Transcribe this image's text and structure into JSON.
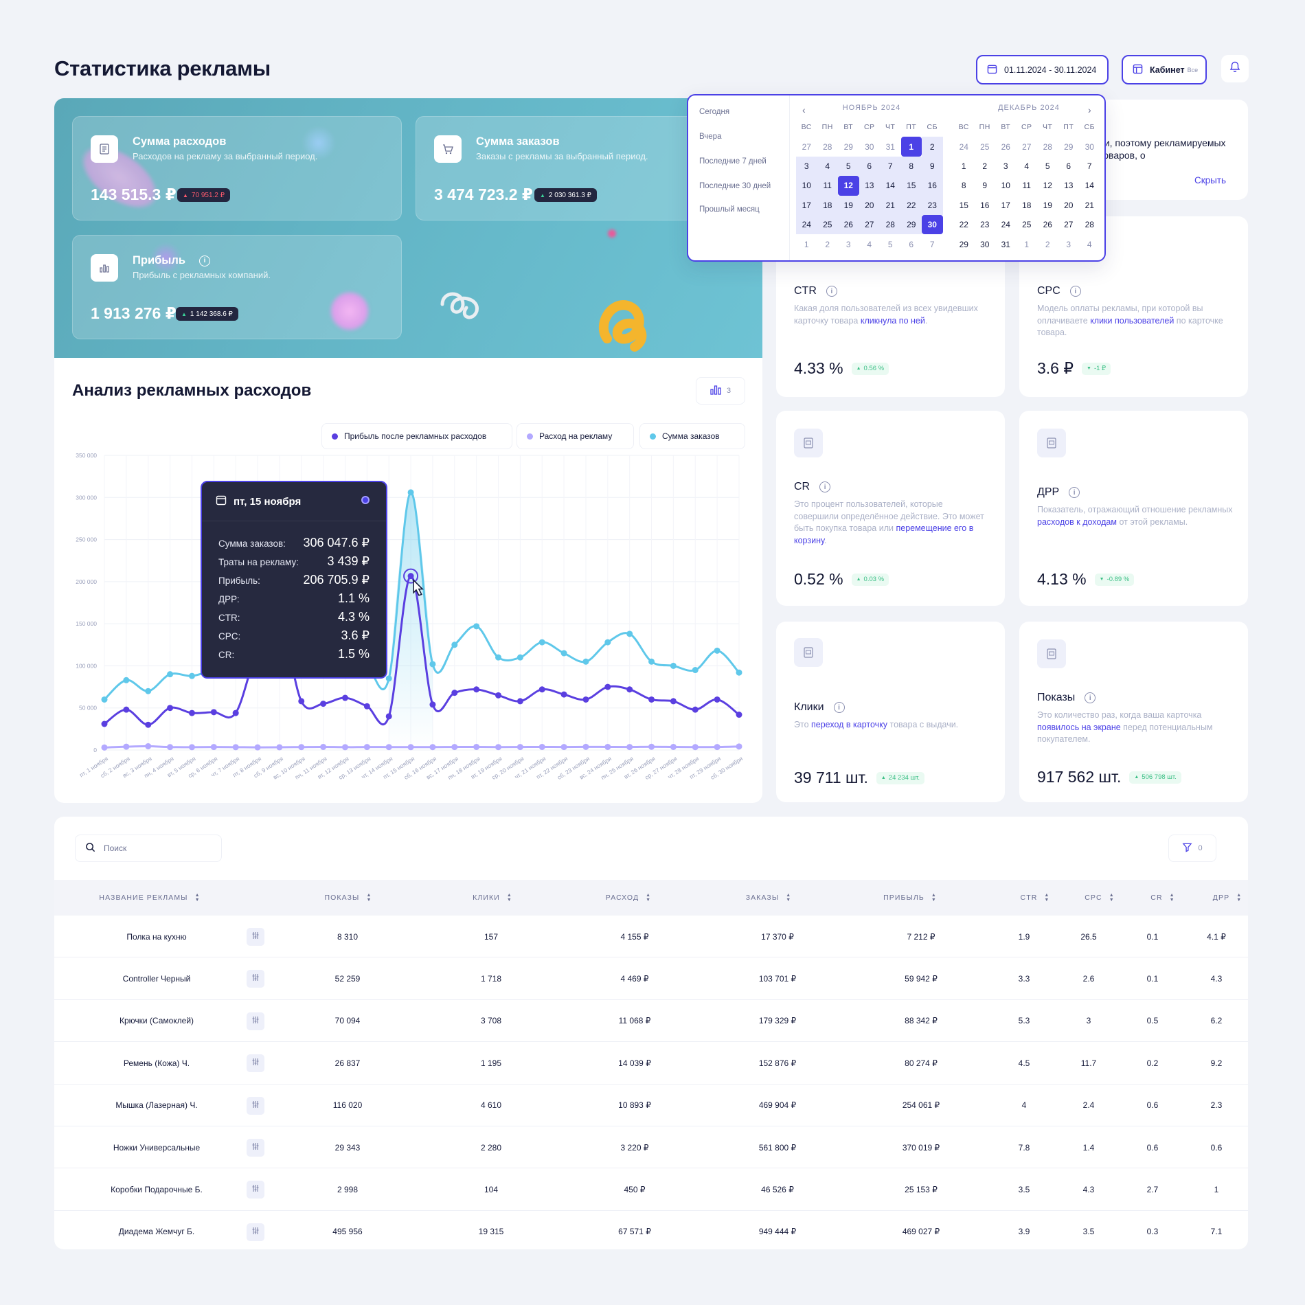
{
  "page": {
    "title": "Статистика рекламы"
  },
  "topbar": {
    "date_range": "01.11.2024 - 30.11.2024",
    "cabinet_label": "Кабинет",
    "cabinet_value": "Все"
  },
  "colors": {
    "accent": "#4b41e6",
    "profit": "#5a3fe0",
    "spend": "#b3a9ff",
    "orders": "#5fc8ea",
    "hero": "#63b5c6"
  },
  "hero": {
    "cards": [
      {
        "title": "Сумма расходов",
        "desc": "Расходов на рекламу за выбранный период.",
        "value": "143 515.3 ₽",
        "delta": "70 951.2 ₽",
        "icon": "receipt-icon"
      },
      {
        "title": "Сумма заказов",
        "desc": "Заказы с рекламы за выбранный период.",
        "value": "3 474 723.2 ₽",
        "delta": "2 030 361.3 ₽",
        "icon": "cart-icon"
      },
      {
        "title": "Прибыль",
        "desc": "Прибыль с рекламных компаний.",
        "value": "1 913 276 ₽",
        "delta": "1 142 368.6 ₽",
        "icon": "bar-chart-icon"
      }
    ]
  },
  "picker": {
    "presets": [
      "Сегодня",
      "Вчера",
      "Последние 7 дней",
      "Последние 30 дней",
      "Прошлый месяц"
    ],
    "weekdays": [
      "ВС",
      "ПН",
      "ВТ",
      "СР",
      "ЧТ",
      "ПТ",
      "СБ"
    ],
    "months": [
      {
        "title": "НОЯБРЬ 2024",
        "days": [
          "27",
          "28",
          "29",
          "30",
          "31",
          "1",
          "2",
          "3",
          "4",
          "5",
          "6",
          "7",
          "8",
          "9",
          "10",
          "11",
          "12",
          "13",
          "14",
          "15",
          "16",
          "17",
          "18",
          "19",
          "20",
          "21",
          "22",
          "23",
          "24",
          "25",
          "26",
          "27",
          "28",
          "29",
          "30",
          "1",
          "2",
          "3",
          "4",
          "5",
          "6",
          "7"
        ]
      },
      {
        "title": "ДЕКАБРЬ 2024",
        "days": [
          "24",
          "25",
          "26",
          "27",
          "28",
          "29",
          "30",
          "1",
          "2",
          "3",
          "4",
          "5",
          "6",
          "7",
          "8",
          "9",
          "10",
          "11",
          "12",
          "13",
          "14",
          "15",
          "16",
          "17",
          "18",
          "19",
          "20",
          "21",
          "22",
          "23",
          "24",
          "25",
          "26",
          "27",
          "28",
          "29",
          "30",
          "31",
          "1",
          "2",
          "3",
          "4"
        ]
      }
    ]
  },
  "info_card": {
    "text": "ии, поэтому рекламируемых товаров, о",
    "hide_label": "Скрыть"
  },
  "kpis": [
    {
      "name": "CTR",
      "text_a": "Какая доля пользователей из всех увидевших карточку товара ",
      "text_hl": "кликнула по ней",
      "text_b": ".",
      "value": "4.33 %",
      "delta": "0.56 %"
    },
    {
      "name": "CPC",
      "text_a": "Модель оплаты рекламы, при которой вы оплачиваете ",
      "text_hl": "клики пользователей",
      "text_b": " по карточке товара.",
      "value": "3.6 ₽",
      "delta": "-1 ₽"
    },
    {
      "name": "CR",
      "text_a": "Это процент пользователей, которые совершили определённое действие. Это может быть покупка товара или ",
      "text_hl": "перемещение его в корзину",
      "text_b": ".",
      "value": "0.52 %",
      "delta": "0.03 %",
      "icon_label": "CR"
    },
    {
      "name": "ДРР",
      "text_a": "Показатель, отражающий отношение рекламных ",
      "text_hl": "расходов к доходам",
      "text_b": " от этой рекламы.",
      "value": "4.13 %",
      "delta": "-0.89 %",
      "icon_label": "ДРР"
    },
    {
      "name": "Клики",
      "text_a": "Это ",
      "text_hl": "переход в карточку",
      "text_b": " товара с выдачи.",
      "value": "39 711 шт.",
      "delta": "24 234 шт."
    },
    {
      "name": "Показы",
      "text_a": "Это количество раз, когда ваша карточка ",
      "text_hl": "появилось на экране",
      "text_b": " перед потенциальным покупателем.",
      "value": "917 562 шт.",
      "delta": "506 798 шт."
    }
  ],
  "chart_panel": {
    "title": "Анализ рекламных расходов",
    "tool_count": "3"
  },
  "chart_data": {
    "type": "line",
    "title": "Анализ рекламных расходов",
    "ylim": [
      0,
      350000
    ],
    "yticks": [
      "0",
      "50 000",
      "100 000",
      "150 000",
      "200 000",
      "250 000",
      "300 000",
      "350 000"
    ],
    "categories": [
      "пт, 1 ноября",
      "сб, 2 ноября",
      "вс, 3 ноября",
      "пн, 4 ноября",
      "вт, 5 ноября",
      "ср, 6 ноября",
      "чт, 7 ноября",
      "пт, 8 ноября",
      "сб, 9 ноября",
      "вс, 10 ноября",
      "пн, 11 ноября",
      "вт, 12 ноября",
      "ср, 13 ноября",
      "чт, 14 ноября",
      "пт, 15 ноября",
      "сб, 16 ноября",
      "вс, 17 ноября",
      "пн, 18 ноября",
      "вт, 19 ноября",
      "ср, 20 ноября",
      "чт, 21 ноября",
      "пт, 22 ноября",
      "сб, 23 ноября",
      "вс, 24 ноября",
      "пн, 25 ноября",
      "вт, 26 ноября",
      "ср, 27 ноября",
      "чт, 28 ноября",
      "пт, 29 ноября",
      "сб, 30 ноября"
    ],
    "series": [
      {
        "name": "Прибыль после рекламных расходов",
        "color": "#5a3fe0",
        "values": [
          31000,
          48000,
          30000,
          50000,
          44000,
          45000,
          44000,
          120000,
          158000,
          58000,
          55000,
          62000,
          52000,
          40000,
          206706,
          54000,
          68000,
          72000,
          65000,
          58000,
          72000,
          66000,
          60000,
          75000,
          72000,
          60000,
          58000,
          48000,
          60000,
          42000
        ]
      },
      {
        "name": "Расход на рекламу",
        "color": "#b3a9ff",
        "values": [
          3000,
          4000,
          4500,
          3500,
          3400,
          3600,
          3400,
          3200,
          3300,
          3500,
          3700,
          3400,
          3600,
          3500,
          3439,
          3500,
          3600,
          3700,
          3500,
          3600,
          3700,
          3600,
          3800,
          3700,
          3600,
          3900,
          3700,
          3500,
          3600,
          4200
        ]
      },
      {
        "name": "Сумма заказов",
        "color": "#5fc8ea",
        "values": [
          60000,
          83000,
          70000,
          90000,
          88000,
          95000,
          98000,
          160000,
          195000,
          110000,
          108000,
          112000,
          100000,
          85000,
          306048,
          102000,
          125000,
          147000,
          110000,
          110000,
          128000,
          115000,
          105000,
          128000,
          138000,
          105000,
          100000,
          95000,
          118000,
          92000
        ]
      }
    ],
    "tooltip": {
      "date": "пт, 15 ноября",
      "rows": [
        {
          "k": "Сумма заказов:",
          "v": "306 047.6 ₽"
        },
        {
          "k": "Траты на рекламу:",
          "v": "3 439 ₽"
        },
        {
          "k": "Прибыль:",
          "v": "206 705.9 ₽"
        },
        {
          "k": "ДРР:",
          "v": "1.1 %"
        },
        {
          "k": "CTR:",
          "v": "4.3 %"
        },
        {
          "k": "CPC:",
          "v": "3.6 ₽"
        },
        {
          "k": "CR:",
          "v": "1.5 %"
        }
      ]
    }
  },
  "table": {
    "search_placeholder": "Поиск",
    "filter_count": "0",
    "columns": [
      "НАЗВАНИЕ РЕКЛАМЫ",
      "ПОКАЗЫ",
      "КЛИКИ",
      "РАСХОД",
      "ЗАКАЗЫ",
      "ПРИБЫЛЬ",
      "CTR",
      "CPC",
      "CR",
      "ДРР"
    ],
    "rows": [
      [
        "Полка на кухню",
        "8 310",
        "157",
        "4 155 ₽",
        "17 370 ₽",
        "7 212 ₽",
        "1.9",
        "26.5",
        "0.1",
        "4.1 ₽"
      ],
      [
        "Controller Черный",
        "52 259",
        "1 718",
        "4 469 ₽",
        "103 701 ₽",
        "59 942 ₽",
        "3.3",
        "2.6",
        "0.1",
        "4.3"
      ],
      [
        "Крючки (Самоклей)",
        "70 094",
        "3 708",
        "11 068 ₽",
        "179 329 ₽",
        "88 342 ₽",
        "5.3",
        "3",
        "0.5",
        "6.2"
      ],
      [
        "Ремень (Кожа) Ч.",
        "26 837",
        "1 195",
        "14 039 ₽",
        "152 876 ₽",
        "80 274 ₽",
        "4.5",
        "11.7",
        "0.2",
        "9.2"
      ],
      [
        "Мышка (Лазерная) Ч.",
        "116 020",
        "4 610",
        "10 893 ₽",
        "469 904 ₽",
        "254 061 ₽",
        "4",
        "2.4",
        "0.6",
        "2.3"
      ],
      [
        "Ножки Универсальные",
        "29 343",
        "2 280",
        "3 220 ₽",
        "561 800 ₽",
        "370 019 ₽",
        "7.8",
        "1.4",
        "0.6",
        "0.6"
      ],
      [
        "Коробки Подарочные Б.",
        "2 998",
        "104",
        "450 ₽",
        "46 526 ₽",
        "25 153 ₽",
        "3.5",
        "4.3",
        "2.7",
        "1"
      ],
      [
        "Диадема Жемчуг Б.",
        "495 956",
        "19 315",
        "67 571 ₽",
        "949 444 ₽",
        "469 027 ₽",
        "3.9",
        "3.5",
        "0.3",
        "7.1"
      ]
    ]
  }
}
